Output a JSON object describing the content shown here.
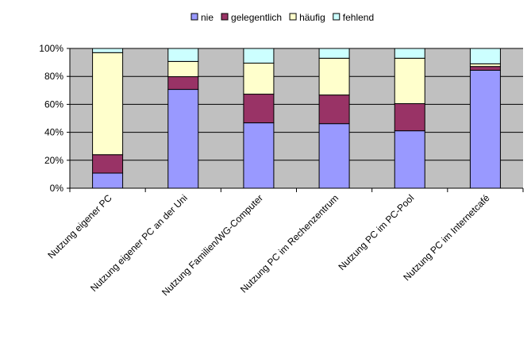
{
  "chart_data": {
    "type": "bar",
    "stacked": "percent",
    "title": "",
    "xlabel": "",
    "ylabel": "",
    "ylim": [
      0,
      100
    ],
    "yticks": [
      "0%",
      "20%",
      "40%",
      "60%",
      "80%",
      "100%"
    ],
    "grid": true,
    "legend_position": "top-right",
    "categories": [
      "Nutzung eigener PC",
      "Nutzung eigener PC an der Uni",
      "Nutzung Familien/WG-Computer",
      "Nutzung PC im Rechenzentrum",
      "Nutzung PC im PC-Pool",
      "Nutzung PC im Internetcafé"
    ],
    "series": [
      {
        "name": "nie",
        "color": "#9999FF",
        "values": [
          10.8,
          70.7,
          46.8,
          46.2,
          41.1,
          84.4
        ]
      },
      {
        "name": "gelegentlich",
        "color": "#993366",
        "values": [
          13.2,
          9.1,
          20.5,
          20.5,
          19.4,
          2.7
        ]
      },
      {
        "name": "häufig",
        "color": "#FFFFCC",
        "values": [
          73.0,
          10.9,
          22.2,
          26.3,
          32.5,
          1.9
        ]
      },
      {
        "name": "fehlend",
        "color": "#CCFFFF",
        "values": [
          3.0,
          9.3,
          10.5,
          7.0,
          7.0,
          11.0
        ]
      }
    ]
  }
}
